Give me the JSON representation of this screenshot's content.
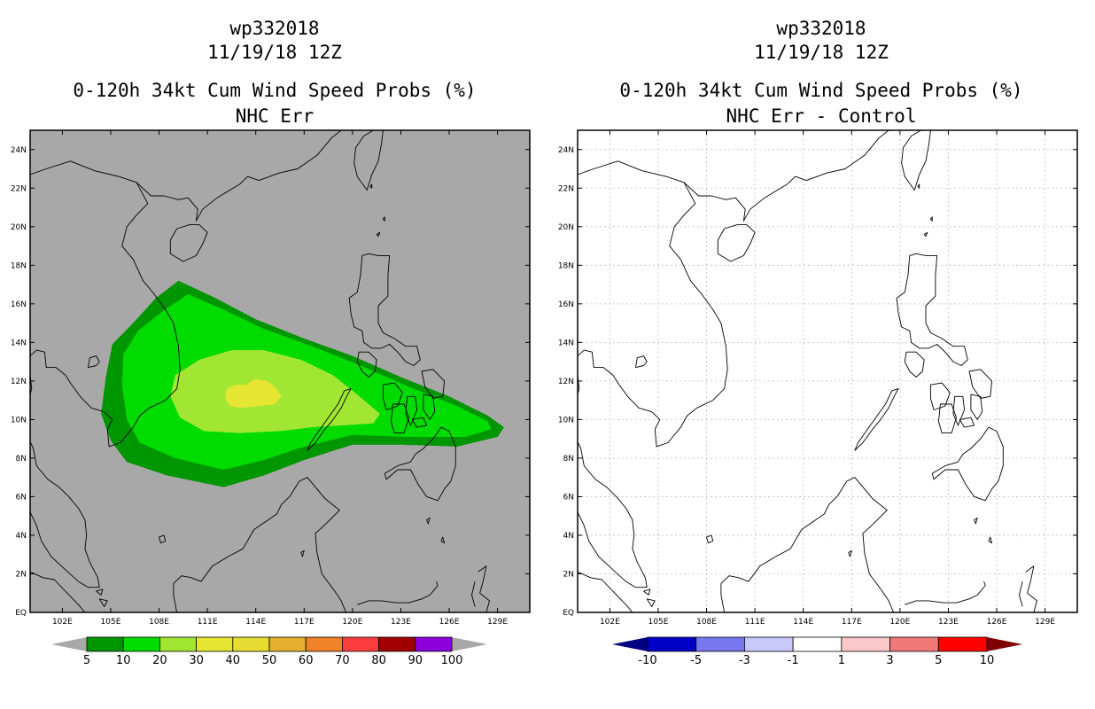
{
  "colors": {
    "ocean_left": "#a8a8a8",
    "ocean_right": "#ffffff",
    "coast": "#000000",
    "grid": "#bdbdbd"
  },
  "chart_data": [
    {
      "type": "heatmap",
      "id": "left",
      "title_lines": [
        "wp332018",
        "11/19/18 12Z",
        "0-120h 34kt Cum Wind Speed Probs (%)",
        "NHC Err"
      ],
      "xlim": [
        100,
        131
      ],
      "ylim": [
        0,
        25
      ],
      "xticks": [
        102,
        105,
        108,
        111,
        114,
        117,
        120,
        123,
        126,
        129
      ],
      "xtick_labels": [
        "102E",
        "105E",
        "108E",
        "111E",
        "114E",
        "117E",
        "120E",
        "123E",
        "126E",
        "129E"
      ],
      "yticks": [
        0,
        2,
        4,
        6,
        8,
        10,
        12,
        14,
        16,
        18,
        20,
        22,
        24
      ],
      "ytick_labels": [
        "EQ",
        "2N",
        "4N",
        "6N",
        "8N",
        "10N",
        "12N",
        "14N",
        "16N",
        "18N",
        "20N",
        "22N",
        "24N"
      ],
      "grid": false,
      "contours": [
        {
          "level": "5-10",
          "color": "#009600",
          "polygon": [
            [
              107.8,
              16.3
            ],
            [
              109.2,
              17.2
            ],
            [
              111.5,
              16.3
            ],
            [
              114,
              15.2
            ],
            [
              117,
              14.2
            ],
            [
              120,
              13.3
            ],
            [
              123,
              12.2
            ],
            [
              126,
              11.2
            ],
            [
              128.4,
              10.2
            ],
            [
              129.4,
              9.6
            ],
            [
              129,
              9.1
            ],
            [
              126.5,
              8.6
            ],
            [
              123,
              8.7
            ],
            [
              120,
              8.7
            ],
            [
              117,
              7.9
            ],
            [
              114.5,
              7.1
            ],
            [
              112,
              6.5
            ],
            [
              108.5,
              7.1
            ],
            [
              106,
              7.8
            ],
            [
              105,
              8.9
            ],
            [
              104.4,
              10.3
            ],
            [
              104.7,
              12.2
            ],
            [
              105.1,
              13.9
            ],
            [
              106.5,
              15.1
            ]
          ]
        },
        {
          "level": "10-20",
          "color": "#00dc00",
          "polygon": [
            [
              108.2,
              15.6
            ],
            [
              109.8,
              16.5
            ],
            [
              112,
              15.7
            ],
            [
              114.5,
              14.7
            ],
            [
              117.5,
              13.8
            ],
            [
              120.5,
              12.8
            ],
            [
              123.5,
              11.7
            ],
            [
              126.5,
              10.7
            ],
            [
              128.4,
              9.9
            ],
            [
              128.6,
              9.5
            ],
            [
              127,
              9.1
            ],
            [
              123.5,
              9.1
            ],
            [
              120,
              9.2
            ],
            [
              117,
              8.6
            ],
            [
              114.5,
              7.9
            ],
            [
              112,
              7.4
            ],
            [
              109,
              8
            ],
            [
              106.8,
              8.8
            ],
            [
              106,
              10
            ],
            [
              105.7,
              11.8
            ],
            [
              105.8,
              13.4
            ],
            [
              106.7,
              14.6
            ]
          ]
        },
        {
          "level": "20-30",
          "color": "#a0e632",
          "polygon": [
            [
              109,
              12.3
            ],
            [
              110.5,
              13.1
            ],
            [
              112.5,
              13.6
            ],
            [
              114.5,
              13.6
            ],
            [
              116.8,
              13.1
            ],
            [
              118.8,
              12.3
            ],
            [
              120.3,
              11.3
            ],
            [
              121.7,
              10.3
            ],
            [
              121.3,
              9.8
            ],
            [
              119.5,
              9.7
            ],
            [
              117.5,
              9.6
            ],
            [
              115.5,
              9.4
            ],
            [
              113,
              9.3
            ],
            [
              110.8,
              9.4
            ],
            [
              109.3,
              10.1
            ],
            [
              108.7,
              11.2
            ]
          ]
        },
        {
          "level": "30-40",
          "color": "#e6e632",
          "polygon": [
            [
              112.2,
              11.6
            ],
            [
              112.7,
              11.8
            ],
            [
              113.4,
              11.8
            ],
            [
              113.9,
              12.1
            ],
            [
              114.7,
              12
            ],
            [
              115.2,
              11.7
            ],
            [
              115.6,
              11.2
            ],
            [
              115.2,
              10.8
            ],
            [
              114.2,
              10.7
            ],
            [
              113.1,
              10.6
            ],
            [
              112.4,
              10.7
            ],
            [
              112.1,
              11.1
            ]
          ]
        }
      ]
    },
    {
      "type": "heatmap",
      "id": "right",
      "title_lines": [
        "wp332018",
        "11/19/18 12Z",
        "0-120h 34kt Cum Wind Speed Probs (%)",
        "NHC Err - Control"
      ],
      "xlim": [
        100,
        131
      ],
      "ylim": [
        0,
        25
      ],
      "xticks": [
        102,
        105,
        108,
        111,
        114,
        117,
        120,
        123,
        126,
        129
      ],
      "xtick_labels": [
        "102E",
        "105E",
        "108E",
        "111E",
        "114E",
        "117E",
        "120E",
        "123E",
        "126E",
        "129E"
      ],
      "yticks": [
        0,
        2,
        4,
        6,
        8,
        10,
        12,
        14,
        16,
        18,
        20,
        22,
        24
      ],
      "ytick_labels": [
        "EQ",
        "2N",
        "4N",
        "6N",
        "8N",
        "10N",
        "12N",
        "14N",
        "16N",
        "18N",
        "20N",
        "22N",
        "24N"
      ],
      "grid": true,
      "contours": []
    }
  ],
  "colorbars": [
    {
      "id": "left",
      "labels": [
        "5",
        "10",
        "20",
        "30",
        "40",
        "50",
        "60",
        "70",
        "80",
        "90",
        "100"
      ],
      "colors": [
        "#009600",
        "#00dc00",
        "#a0e632",
        "#e6e632",
        "#e6dc32",
        "#e6af2d",
        "#f08228",
        "#fa3c3c",
        "#a00000",
        "#8c00dc"
      ],
      "under_color": "#a8a8a8",
      "over_color": "#a8a8a8"
    },
    {
      "id": "right",
      "labels": [
        "-10",
        "-5",
        "-3",
        "-1",
        "1",
        "3",
        "5",
        "10"
      ],
      "colors": [
        "#0000c8",
        "#7878f0",
        "#c8c8fa",
        "#ffffff",
        "#fac8c8",
        "#f07878",
        "#ff0000"
      ],
      "under_color": "#000080",
      "over_color": "#800000"
    }
  ]
}
